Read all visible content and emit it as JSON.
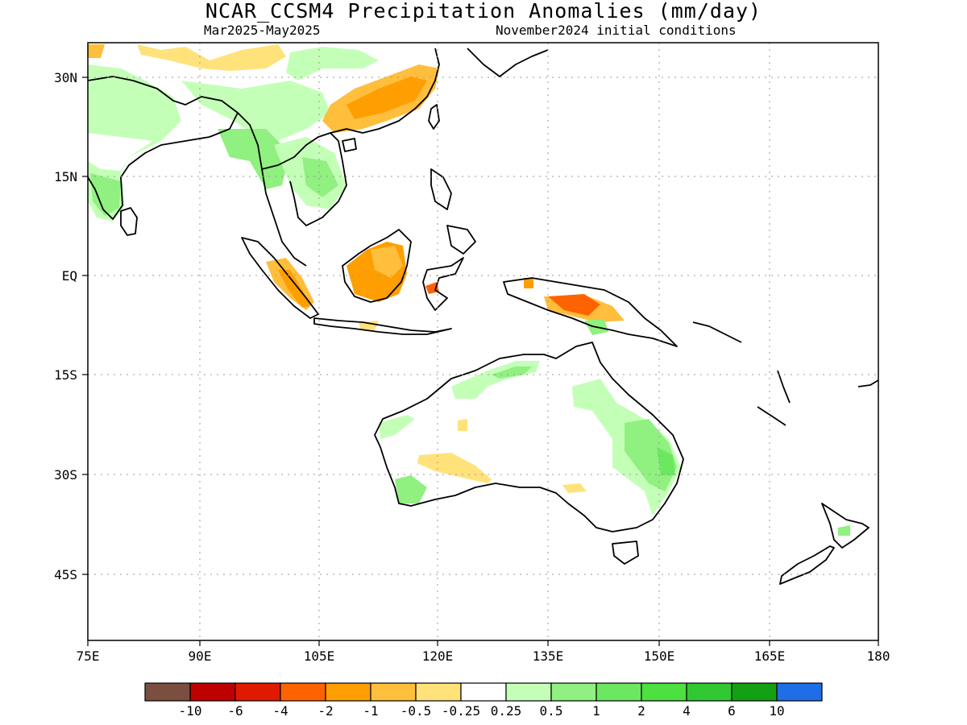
{
  "title": "NCAR_CCSM4 Precipitation Anomalies (mm/day)",
  "subtitle_left": "Mar2025-May2025",
  "subtitle_right": "November2024 initial conditions",
  "x_ticks": [
    "75E",
    "90E",
    "105E",
    "120E",
    "135E",
    "150E",
    "165E",
    "180"
  ],
  "y_ticks": [
    "30N",
    "15N",
    "EQ",
    "15S",
    "30S",
    "45S"
  ],
  "colorbar": {
    "colors": [
      "#7b4f3f",
      "#bf0000",
      "#e01a00",
      "#ff6300",
      "#ff9e00",
      "#ffbe3c",
      "#ffe27a",
      "#ffffff",
      "#c4ffb8",
      "#90f080",
      "#6ce860",
      "#4ce040",
      "#32c832",
      "#14a014",
      "#1e6ee6"
    ],
    "labels": [
      "-10",
      "-6",
      "-4",
      "-2",
      "-1",
      "-0.5",
      "-0.25",
      "0.25",
      "0.5",
      "1",
      "2",
      "4",
      "6",
      "10"
    ]
  }
}
